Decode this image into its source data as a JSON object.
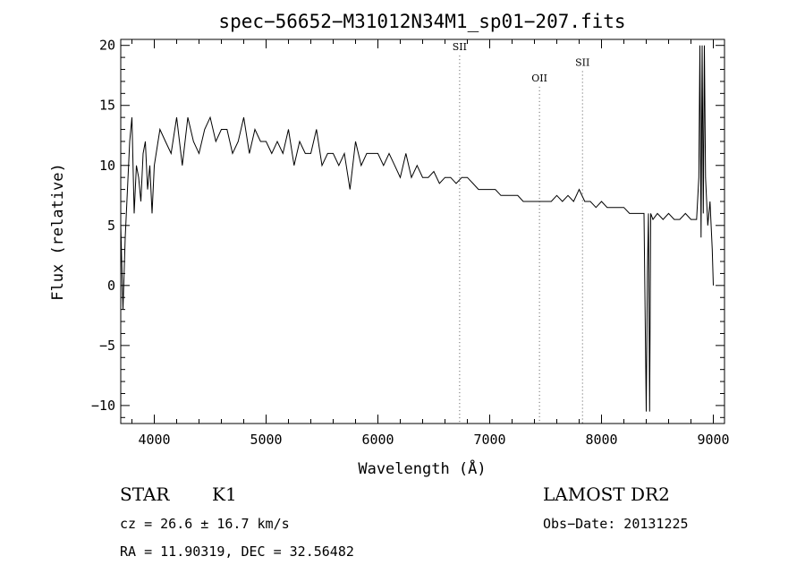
{
  "chart_data": {
    "type": "line",
    "title": "spec−56652−M31012N34M1_sp01−207.fits",
    "xlabel": "Wavelength (Å)",
    "ylabel": "Flux (relative)",
    "xlim": [
      3700,
      9100
    ],
    "ylim": [
      -11.5,
      20.5
    ],
    "grid": false,
    "legend": "none",
    "x_ticks": [
      {
        "value": 4000,
        "label": "4000"
      },
      {
        "value": 5000,
        "label": "5000"
      },
      {
        "value": 6000,
        "label": "6000"
      },
      {
        "value": 7000,
        "label": "7000"
      },
      {
        "value": 8000,
        "label": "8000"
      },
      {
        "value": 9000,
        "label": "9000"
      }
    ],
    "y_ticks": [
      {
        "value": -10,
        "label": "−10"
      },
      {
        "value": -5,
        "label": "−5"
      },
      {
        "value": 0,
        "label": "0"
      },
      {
        "value": 5,
        "label": "5"
      },
      {
        "value": 10,
        "label": "10"
      },
      {
        "value": 15,
        "label": "15"
      },
      {
        "value": 20,
        "label": "20"
      }
    ],
    "line_annotations": [
      {
        "label": "SII",
        "x": 6731,
        "label_y": 19.6
      },
      {
        "label": "OII",
        "x": 7445,
        "label_y": 17.0
      },
      {
        "label": "SII",
        "x": 7830,
        "label_y": 18.3
      }
    ],
    "series": [
      {
        "color": "#000000",
        "x": [
          3700,
          3720,
          3740,
          3760,
          3780,
          3800,
          3820,
          3840,
          3860,
          3880,
          3900,
          3920,
          3940,
          3960,
          3980,
          4000,
          4050,
          4100,
          4150,
          4200,
          4250,
          4300,
          4350,
          4400,
          4450,
          4500,
          4550,
          4600,
          4650,
          4700,
          4750,
          4800,
          4850,
          4900,
          4950,
          5000,
          5050,
          5100,
          5150,
          5200,
          5250,
          5300,
          5350,
          5400,
          5450,
          5500,
          5550,
          5600,
          5650,
          5700,
          5750,
          5800,
          5850,
          5900,
          5950,
          6000,
          6050,
          6100,
          6150,
          6200,
          6250,
          6300,
          6350,
          6400,
          6450,
          6500,
          6550,
          6600,
          6650,
          6700,
          6750,
          6800,
          6850,
          6900,
          6950,
          7000,
          7050,
          7100,
          7150,
          7200,
          7250,
          7300,
          7350,
          7400,
          7450,
          7500,
          7550,
          7600,
          7650,
          7700,
          7750,
          7800,
          7850,
          7900,
          7950,
          8000,
          8050,
          8100,
          8150,
          8200,
          8250,
          8300,
          8350,
          8380,
          8400,
          8410,
          8420,
          8430,
          8440,
          8460,
          8500,
          8550,
          8600,
          8650,
          8700,
          8750,
          8800,
          8850,
          8870,
          8880,
          8890,
          8900,
          8910,
          8920,
          8930,
          8950,
          8970,
          8990,
          9000
        ],
        "y": [
          5,
          -2,
          4,
          8,
          12,
          14,
          6,
          10,
          9,
          7,
          11,
          12,
          8,
          10,
          6,
          10,
          13,
          12,
          11,
          14,
          10,
          14,
          12,
          11,
          13,
          14,
          12,
          13,
          13,
          11,
          12,
          14,
          11,
          13,
          12,
          12,
          11,
          12,
          11,
          13,
          10,
          12,
          11,
          11,
          13,
          10,
          11,
          11,
          10,
          11,
          8,
          12,
          10,
          11,
          11,
          11,
          10,
          11,
          10,
          9,
          11,
          9,
          10,
          9,
          9,
          9.5,
          8.5,
          9,
          9,
          8.5,
          9,
          9,
          8.5,
          8,
          8,
          8,
          8,
          7.5,
          7.5,
          7.5,
          7.5,
          7,
          7,
          7,
          7,
          7,
          7,
          7.5,
          7,
          7.5,
          7,
          8,
          7,
          7,
          6.5,
          7,
          6.5,
          6.5,
          6.5,
          6.5,
          6,
          6,
          6,
          6,
          -10.5,
          1,
          6,
          -10.5,
          6,
          5.5,
          6,
          5.5,
          6,
          5.5,
          5.5,
          6,
          5.5,
          5.5,
          9,
          20,
          4,
          20,
          6,
          20,
          9,
          5,
          7,
          3,
          0
        ]
      }
    ]
  },
  "footer": {
    "object_class": "STAR",
    "subclass": "K1",
    "cz": "cz = 26.6 ± 16.7 km/s",
    "coords": "RA =   11.90319, DEC =   32.56482",
    "survey": "LAMOST DR2",
    "obs_date": "Obs−Date: 20131225"
  }
}
